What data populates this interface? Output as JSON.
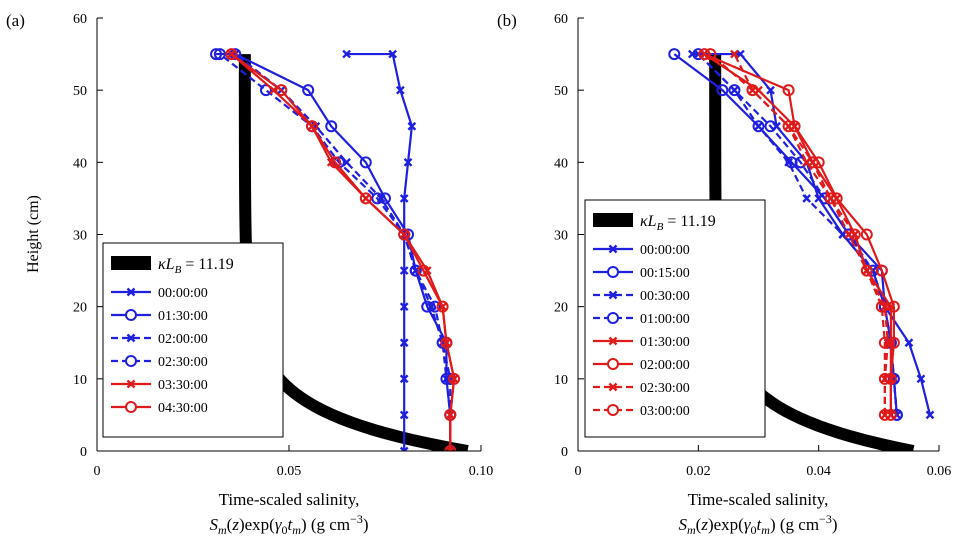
{
  "chart_data": [
    {
      "panel": "(a)",
      "type": "line",
      "ylabel": "Height (cm)",
      "xlabel_line1": "Time-scaled salinity,",
      "xlabel_line2_text": "S_m(z)exp(γ0 t_m) (g cm−3)",
      "xlim": [
        0,
        0.1
      ],
      "ylim": [
        0,
        60
      ],
      "xticks": [
        0,
        0.05,
        0.1
      ],
      "xtick_labels": [
        "0",
        "0.05",
        "0.10"
      ],
      "yticks": [
        0,
        10,
        20,
        30,
        40,
        50,
        60
      ],
      "ytick_labels": [
        "0",
        "10",
        "20",
        "30",
        "40",
        "50",
        "60"
      ],
      "model_label": "κL_B = 11.19",
      "model": {
        "kappaLB": 11.19,
        "value_at_0": 0.0965,
        "value_at_55": 0.0385
      },
      "series": [
        {
          "name": "00:00:00",
          "color": "#1f1fe0",
          "dash": false,
          "marker": "x",
          "x": [
            0.08,
            0.08,
            0.08,
            0.08,
            0.08,
            0.08,
            0.08,
            0.08,
            0.081,
            0.082,
            0.079,
            0.077,
            0.065
          ],
          "y": [
            0,
            5,
            10,
            15,
            20,
            25,
            30,
            35,
            40,
            45,
            50,
            55,
            55
          ]
        },
        {
          "name": "01:30:00",
          "color": "#1f1fe0",
          "dash": false,
          "marker": "o",
          "x": [
            0.092,
            0.092,
            0.091,
            0.091,
            0.086,
            0.083,
            0.081,
            0.075,
            0.07,
            0.061,
            0.055,
            0.036,
            0.031
          ],
          "y": [
            0,
            5,
            10,
            15,
            20,
            25,
            30,
            35,
            40,
            45,
            50,
            55,
            55
          ]
        },
        {
          "name": "02:00:00",
          "color": "#1f1fe0",
          "dash": true,
          "marker": "x",
          "x": [
            0.092,
            0.092,
            0.091,
            0.09,
            0.087,
            0.083,
            0.08,
            0.074,
            0.065,
            0.057,
            0.048,
            0.036
          ],
          "y": [
            0,
            5,
            10,
            15,
            20,
            25,
            30,
            35,
            40,
            45,
            50,
            55
          ]
        },
        {
          "name": "02:30:00",
          "color": "#1f1fe0",
          "dash": true,
          "marker": "o",
          "x": [
            0.092,
            0.092,
            0.092,
            0.09,
            0.088,
            0.083,
            0.08,
            0.073,
            0.063,
            0.056,
            0.044,
            0.032
          ],
          "y": [
            0,
            5,
            10,
            15,
            20,
            25,
            30,
            35,
            40,
            45,
            50,
            55
          ]
        },
        {
          "name": "03:30:00",
          "color": "#e01a1a",
          "dash": false,
          "marker": "x",
          "x": [
            0.092,
            0.092,
            0.093,
            0.091,
            0.09,
            0.086,
            0.08,
            0.07,
            0.061,
            0.056,
            0.046,
            0.035
          ],
          "y": [
            0,
            5,
            10,
            15,
            20,
            25,
            30,
            35,
            40,
            45,
            50,
            55
          ]
        },
        {
          "name": "04:30:00",
          "color": "#e01a1a",
          "dash": false,
          "marker": "o",
          "x": [
            0.092,
            0.092,
            0.093,
            0.091,
            0.09,
            0.085,
            0.08,
            0.07,
            0.062,
            0.056,
            0.048,
            0.035
          ],
          "y": [
            0,
            5,
            10,
            15,
            20,
            25,
            30,
            35,
            40,
            45,
            50,
            55
          ]
        }
      ]
    },
    {
      "panel": "(b)",
      "type": "line",
      "ylabel": "",
      "xlabel_line1": "Time-scaled salinity,",
      "xlabel_line2_text": "S_m(z)exp(γ0 t_m) (g cm−3)",
      "xlim": [
        0,
        0.06
      ],
      "ylim": [
        0,
        60
      ],
      "xticks": [
        0,
        0.02,
        0.04,
        0.06
      ],
      "xtick_labels": [
        "0",
        "0.02",
        "0.04",
        "0.06"
      ],
      "yticks": [
        0,
        10,
        20,
        30,
        40,
        50,
        60
      ],
      "ytick_labels": [
        "0",
        "10",
        "20",
        "30",
        "40",
        "50",
        "60"
      ],
      "model_label": "κL_B = 11.19",
      "model": {
        "kappaLB": 11.19,
        "value_at_0": 0.0557,
        "value_at_55": 0.0228
      },
      "series": [
        {
          "name": "00:00:00",
          "color": "#1f1fe0",
          "dash": false,
          "marker": "x",
          "x": [
            0.0585,
            0.057,
            0.055,
            0.051,
            0.049,
            0.044,
            0.04,
            0.038,
            0.033,
            0.032,
            0.027,
            0.019
          ],
          "y": [
            5,
            10,
            15,
            20,
            25,
            30,
            35,
            40,
            45,
            50,
            55,
            55
          ]
        },
        {
          "name": "00:15:00",
          "color": "#1f1fe0",
          "dash": false,
          "marker": "o",
          "x": [
            0.053,
            0.0525,
            0.052,
            0.051,
            0.0505,
            0.045,
            0.041,
            0.0355,
            0.03,
            0.024,
            0.016
          ],
          "y": [
            5,
            10,
            15,
            20,
            25,
            30,
            35,
            40,
            45,
            50,
            55
          ]
        },
        {
          "name": "00:30:00",
          "color": "#1f1fe0",
          "dash": true,
          "marker": "x",
          "x": [
            0.053,
            0.0525,
            0.052,
            0.051,
            0.049,
            0.044,
            0.038,
            0.035,
            0.03,
            0.026,
            0.02
          ],
          "y": [
            5,
            10,
            15,
            20,
            25,
            30,
            35,
            40,
            45,
            50,
            55
          ]
        },
        {
          "name": "01:00:00",
          "color": "#1f1fe0",
          "dash": true,
          "marker": "o",
          "x": [
            0.053,
            0.0525,
            0.052,
            0.051,
            0.049,
            0.045,
            0.041,
            0.037,
            0.032,
            0.026,
            0.02
          ],
          "y": [
            5,
            10,
            15,
            20,
            25,
            30,
            35,
            40,
            45,
            50,
            55
          ]
        },
        {
          "name": "01:30:00",
          "color": "#e01a1a",
          "dash": false,
          "marker": "x",
          "x": [
            0.052,
            0.052,
            0.052,
            0.052,
            0.048,
            0.046,
            0.043,
            0.039,
            0.036,
            0.03,
            0.021
          ],
          "y": [
            5,
            10,
            15,
            20,
            25,
            30,
            35,
            40,
            45,
            50,
            55
          ]
        },
        {
          "name": "02:00:00",
          "color": "#e01a1a",
          "dash": false,
          "marker": "o",
          "x": [
            0.052,
            0.052,
            0.0525,
            0.0525,
            0.0505,
            0.048,
            0.043,
            0.04,
            0.036,
            0.035,
            0.021
          ],
          "y": [
            5,
            10,
            15,
            20,
            25,
            30,
            35,
            40,
            45,
            50,
            55
          ]
        },
        {
          "name": "02:30:00",
          "color": "#e01a1a",
          "dash": true,
          "marker": "x",
          "x": [
            0.051,
            0.051,
            0.0515,
            0.051,
            0.048,
            0.045,
            0.042,
            0.038,
            0.035,
            0.029,
            0.026
          ],
          "y": [
            5,
            10,
            15,
            20,
            25,
            30,
            35,
            40,
            45,
            50,
            55
          ]
        },
        {
          "name": "03:00:00",
          "color": "#e01a1a",
          "dash": true,
          "marker": "o",
          "x": [
            0.051,
            0.051,
            0.051,
            0.0505,
            0.048,
            0.046,
            0.042,
            0.039,
            0.035,
            0.029,
            0.022
          ],
          "y": [
            5,
            10,
            15,
            20,
            25,
            30,
            35,
            40,
            45,
            50,
            55
          ]
        }
      ]
    }
  ]
}
